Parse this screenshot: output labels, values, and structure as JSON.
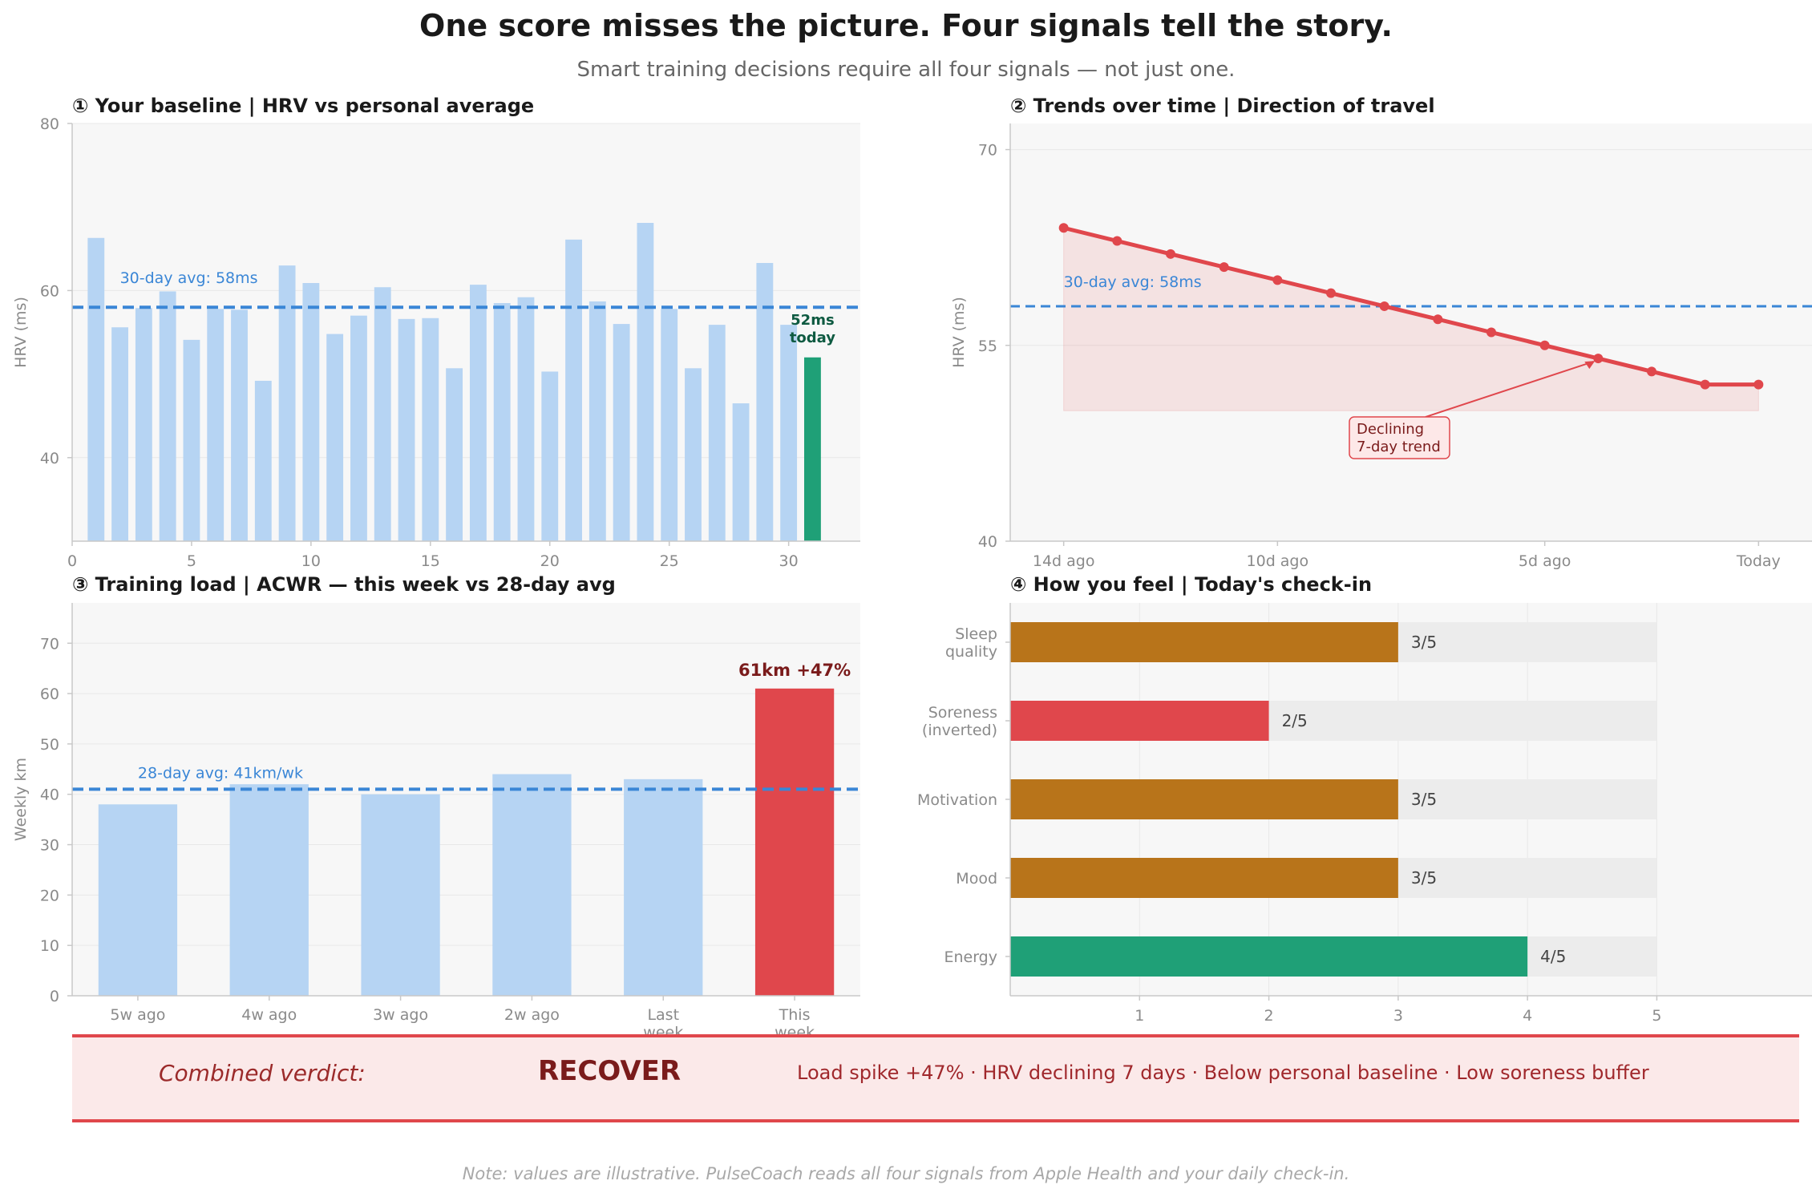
{
  "title": "One score misses the picture. Four signals tell the story.",
  "subtitle": "Smart training decisions require all four signals — not just one.",
  "colors": {
    "light_bar": "#b6d4f3",
    "accent_blue": "#3a86d6",
    "green": "#1fa077",
    "red": "#e0474c",
    "amber": "#b8741a",
    "panel_bg": "#f7f7f7",
    "track": "#ececec"
  },
  "chart_data": [
    {
      "id": "baseline",
      "type": "bar",
      "title": "① Your baseline  |  HRV vs personal average",
      "xlabel": "",
      "ylabel": "HRV (ms)",
      "xlim": [
        0,
        33
      ],
      "ylim": [
        30,
        80
      ],
      "xticks": [
        0,
        5,
        10,
        15,
        20,
        25,
        30
      ],
      "yticks": [
        40,
        60,
        80
      ],
      "x": [
        1,
        2,
        3,
        4,
        5,
        6,
        7,
        8,
        9,
        10,
        11,
        12,
        13,
        14,
        15,
        16,
        17,
        18,
        19,
        20,
        21,
        22,
        23,
        24,
        25,
        26,
        27,
        28,
        29,
        30,
        31
      ],
      "values": [
        66.3,
        55.6,
        57.9,
        59.9,
        54.1,
        57.8,
        57.7,
        49.2,
        63.0,
        60.9,
        54.8,
        57.0,
        60.4,
        56.6,
        56.7,
        50.7,
        60.7,
        58.5,
        59.2,
        50.3,
        66.1,
        58.7,
        56.0,
        68.1,
        57.8,
        50.7,
        55.9,
        46.5,
        63.3,
        55.9,
        52.0
      ],
      "highlight_index": 30,
      "reference_line": {
        "value": 58,
        "label": "30-day avg: 58ms"
      },
      "annotation": {
        "line1": "52ms",
        "line2": "today"
      },
      "grid": "y"
    },
    {
      "id": "trend",
      "type": "line",
      "title": "② Trends over time  |  Direction of travel",
      "xlabel": "",
      "ylabel": "HRV (ms)",
      "xlim": [
        -1,
        14
      ],
      "ylim": [
        40,
        72
      ],
      "xticks": [
        0,
        4,
        9,
        13
      ],
      "xtick_labels": [
        "14d ago",
        "10d ago",
        "5d ago",
        "Today"
      ],
      "yticks": [
        40,
        55,
        70
      ],
      "x": [
        0,
        1,
        2,
        3,
        4,
        5,
        6,
        7,
        8,
        9,
        10,
        11,
        12,
        13
      ],
      "values": [
        64.0,
        63.0,
        62.0,
        61.0,
        60.0,
        59.0,
        58.0,
        57.0,
        56.0,
        55.0,
        54.0,
        53.0,
        52.0,
        52.0
      ],
      "fill_to": 50,
      "reference_line": {
        "value": 58,
        "label": "30-day avg: 58ms"
      },
      "annotation": {
        "line1": "Declining",
        "line2": "7-day trend",
        "target_x": 10
      },
      "grid": "y"
    },
    {
      "id": "load",
      "type": "bar",
      "title": "③ Training load  |  ACWR — this week vs 28-day avg",
      "xlabel": "",
      "ylabel": "Weekly km",
      "ylim": [
        0,
        78
      ],
      "yticks": [
        0,
        10,
        20,
        30,
        40,
        50,
        60,
        70
      ],
      "categories": [
        "5w ago",
        "4w ago",
        "3w ago",
        "2w ago",
        "Last week",
        "This week"
      ],
      "values": [
        38,
        42,
        40,
        44,
        43,
        61
      ],
      "highlight_index": 5,
      "reference_line": {
        "value": 41,
        "label": "28-day avg: 41km/wk"
      },
      "annotation": {
        "text": "61km  +47%"
      },
      "grid": "y"
    },
    {
      "id": "checkin",
      "type": "bar",
      "orientation": "horizontal",
      "title": "④ How you feel  |  Today's check-in",
      "xlim": [
        0,
        6.2
      ],
      "xticks": [
        1,
        2,
        3,
        4,
        5
      ],
      "max": 5,
      "categories": [
        "Sleep quality",
        "Soreness (inverted)",
        "Motivation",
        "Mood",
        "Energy"
      ],
      "values": [
        3,
        2,
        3,
        3,
        4
      ],
      "value_labels": [
        "3/5",
        "2/5",
        "3/5",
        "3/5",
        "4/5"
      ],
      "bar_colors": [
        "#b8741a",
        "#e0474c",
        "#b8741a",
        "#b8741a",
        "#1fa077"
      ],
      "grid": "x"
    }
  ],
  "verdict": {
    "label": "Combined verdict:",
    "value": "RECOVER",
    "reasons": "Load spike +47%  ·  HRV declining 7 days  ·  Below personal baseline  ·  Low soreness buffer"
  },
  "footnote": "Note: values are illustrative. PulseCoach reads all four signals from Apple Health and your daily check-in."
}
